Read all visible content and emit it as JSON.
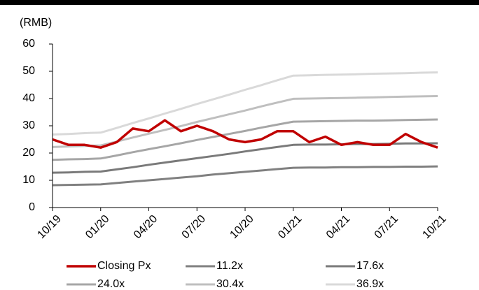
{
  "chart_data": {
    "type": "line",
    "ylabel": "(RMB)",
    "categories": [
      "10/19",
      null,
      null,
      "01/20",
      null,
      null,
      "04/20",
      null,
      null,
      "07/20",
      null,
      null,
      "10/20",
      null,
      null,
      "01/21",
      null,
      null,
      "04/21",
      null,
      null,
      "07/21",
      null,
      null,
      "10/21"
    ],
    "ylim": [
      0,
      60
    ],
    "yticks": [
      0,
      10,
      20,
      30,
      40,
      50,
      60
    ],
    "grid": false,
    "series": [
      {
        "name": "Closing Px",
        "color": "#c00000",
        "width": 3.5,
        "values": [
          25,
          23,
          23,
          22,
          24,
          29,
          28,
          32,
          28,
          30,
          28,
          25,
          24,
          25,
          28,
          28,
          24,
          26,
          23,
          24,
          23,
          23,
          27,
          24,
          22
        ]
      },
      {
        "name": "11.2x",
        "color": "#808080",
        "width": 3,
        "values": [
          8.2,
          8.3,
          8.4,
          8.5,
          9.0,
          9.5,
          10.0,
          10.5,
          11.0,
          11.5,
          12.1,
          12.6,
          13.1,
          13.6,
          14.1,
          14.6,
          14.7,
          14.7,
          14.8,
          14.8,
          14.9,
          14.9,
          15.0,
          15.0,
          15.1
        ]
      },
      {
        "name": "17.6x",
        "color": "#7a7a7a",
        "width": 3,
        "values": [
          12.8,
          12.9,
          13.1,
          13.2,
          14.0,
          14.8,
          15.7,
          16.5,
          17.3,
          18.1,
          18.9,
          19.7,
          20.6,
          21.4,
          22.2,
          23.0,
          23.1,
          23.1,
          23.2,
          23.3,
          23.3,
          23.4,
          23.5,
          23.5,
          23.6
        ]
      },
      {
        "name": "24.0x",
        "color": "#a6a6a6",
        "width": 3,
        "values": [
          17.5,
          17.7,
          17.8,
          18.0,
          19.1,
          20.3,
          21.4,
          22.5,
          23.6,
          24.8,
          25.9,
          27.0,
          28.1,
          29.3,
          30.4,
          31.5,
          31.6,
          31.7,
          31.8,
          31.9,
          31.9,
          32.0,
          32.1,
          32.2,
          32.3
        ]
      },
      {
        "name": "30.4x",
        "color": "#bfbfbf",
        "width": 3,
        "values": [
          22.2,
          22.4,
          22.6,
          22.8,
          24.2,
          25.7,
          27.1,
          28.5,
          29.9,
          31.4,
          32.8,
          34.2,
          35.6,
          37.1,
          38.5,
          39.9,
          40.0,
          40.1,
          40.2,
          40.3,
          40.4,
          40.6,
          40.7,
          40.8,
          40.9
        ]
      },
      {
        "name": "36.9x",
        "color": "#d9d9d9",
        "width": 3,
        "values": [
          26.8,
          27.0,
          27.3,
          27.5,
          29.2,
          31.0,
          32.7,
          34.5,
          36.2,
          38.0,
          39.7,
          41.4,
          43.2,
          44.9,
          46.7,
          48.4,
          48.5,
          48.7,
          48.8,
          48.9,
          49.1,
          49.2,
          49.3,
          49.5,
          49.6
        ]
      }
    ]
  }
}
